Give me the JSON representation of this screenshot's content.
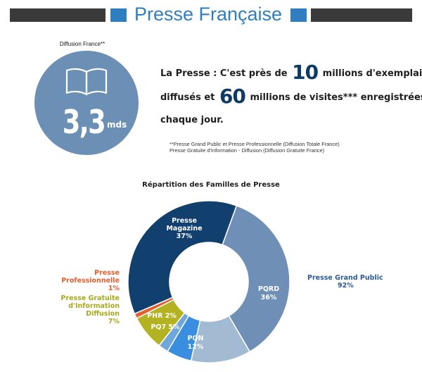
{
  "header": {
    "title": "Presse Française"
  },
  "circle": {
    "label": "Diffusion France**",
    "value": "3,3",
    "unit": "mds",
    "icon": "open-book-icon"
  },
  "headline": {
    "line1_prefix": "La Presse : C'est près de",
    "line1_num": "10",
    "line1_suffix": "millions d'exemplaires",
    "line2_prefix": "diffusés et",
    "line2_num": "60",
    "line2_suffix": "millions de visites*** enregistrées",
    "line3": "chaque jour."
  },
  "footnote": {
    "line1": "**Presse Grand Public et Presse Professionnelle (Diffusion Totale France)",
    "line2": "Presse Gratuite d'Information - Diffusion (Diffusion Gratuite France)"
  },
  "colors": {
    "accent": "#2f7ec1",
    "dark_bar": "#3a3a3a",
    "circle": "#6c8fb5"
  },
  "chart_data": {
    "type": "pie",
    "title": "Répartition des Familles de Presse",
    "slices": [
      {
        "label": "PQRD",
        "value": 36,
        "pct_text": "36%",
        "color": "#6f8fb6"
      },
      {
        "label": "PQN",
        "value": 12,
        "pct_text": "12%",
        "color": "#a3bad3"
      },
      {
        "label": "PQ7",
        "value": 5,
        "pct_text": "5%",
        "color": "#3a8ee0"
      },
      {
        "label": "PHR",
        "value": 2,
        "pct_text": "2%",
        "color": "#6fa6dc"
      },
      {
        "label": "Presse Gratuite d'Information Diffusion",
        "value": 7,
        "pct_text": "7%",
        "color": "#b3b322"
      },
      {
        "label": "Presse Professionnelle",
        "value": 1,
        "pct_text": "1%",
        "color": "#e3602c"
      },
      {
        "label": "Presse Magazine",
        "value": 37,
        "pct_text": "37%",
        "color": "#12406e"
      }
    ],
    "groups": [
      {
        "label": "Presse Grand Public",
        "value": 92,
        "pct_text": "92%"
      }
    ],
    "inner_labels": {
      "magazine_line1": "Presse",
      "magazine_line2": "Magazine",
      "magazine_pct": "37%",
      "pqrd": "PQRD",
      "pqrd_pct": "36%",
      "pqn": "PQN",
      "pqn_pct": "12%",
      "pq7": "PQ7 5%",
      "phr": "PHR 2%"
    },
    "external_labels": {
      "pro_line1": "Presse",
      "pro_line2": "Professionnelle",
      "pro_pct": "1%",
      "gratuite_line1": "Presse Gratuite",
      "gratuite_line2": "d'Information",
      "gratuite_line3": "Diffusion",
      "gratuite_pct": "7%",
      "grand_public_line1": "Presse Grand Public",
      "grand_public_pct": "92%"
    }
  }
}
